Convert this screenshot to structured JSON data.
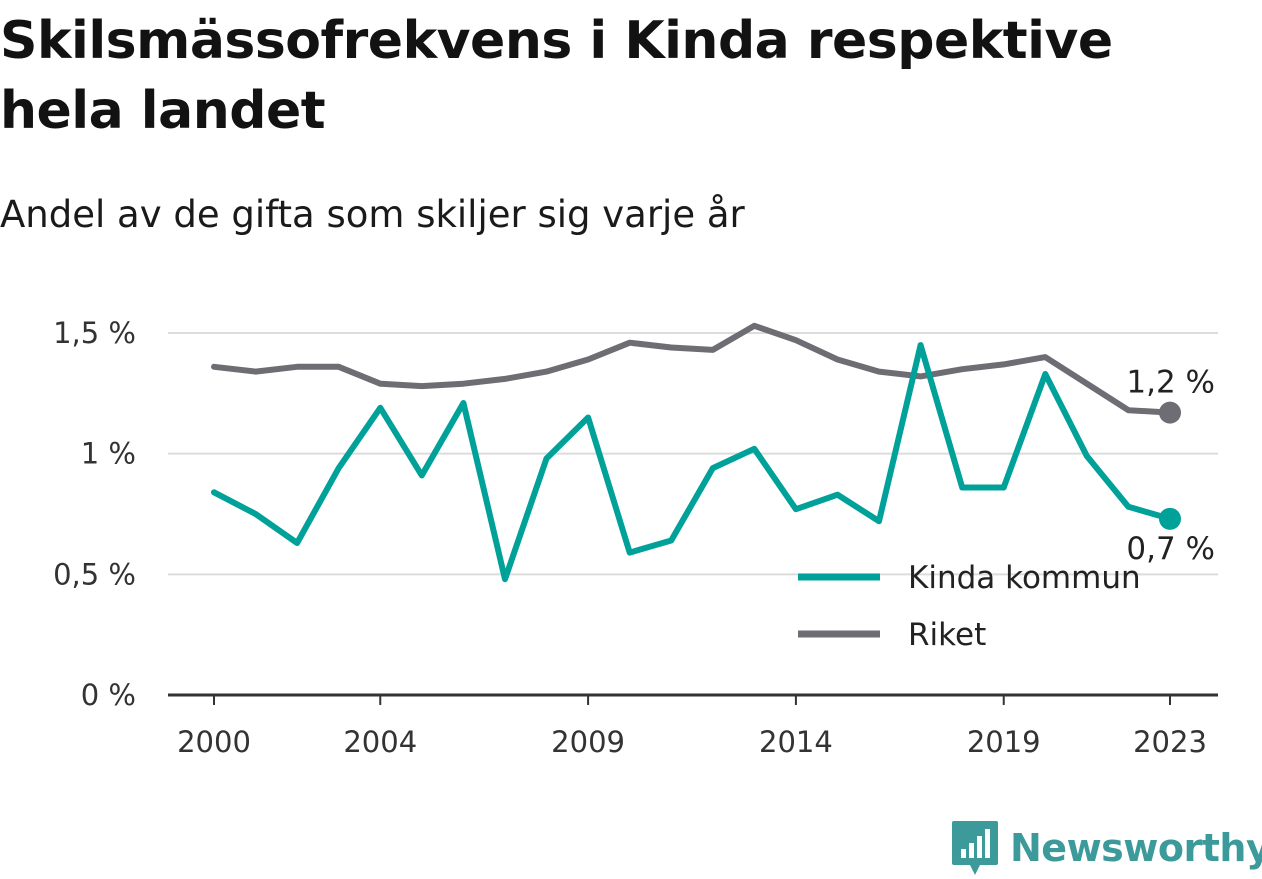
{
  "title": "Skilsmässofrekvens i Kinda respektive hela landet",
  "subtitle": "Andel av de gifta som skiljer sig varje år",
  "brand": {
    "name": "Newsworthy",
    "color": "#3d9a9b",
    "icon": "newsworthy-logo-icon"
  },
  "chart_data": {
    "type": "line",
    "title": "Skilsmässofrekvens i Kinda respektive hela landet",
    "subtitle": "Andel av de gifta som skiljer sig varje år",
    "xlabel": "",
    "ylabel": "",
    "x": [
      2000,
      2001,
      2002,
      2003,
      2004,
      2005,
      2006,
      2007,
      2008,
      2009,
      2010,
      2011,
      2012,
      2013,
      2014,
      2015,
      2016,
      2017,
      2018,
      2019,
      2020,
      2021,
      2022,
      2023
    ],
    "x_ticks": [
      "2000",
      "2004",
      "2009",
      "2014",
      "2019",
      "2023"
    ],
    "x_tick_values": [
      2000,
      2004,
      2009,
      2014,
      2019,
      2023
    ],
    "y_ticks": [
      "0 %",
      "0,5 %",
      "1 %",
      "1,5 %"
    ],
    "y_tick_values": [
      0,
      0.5,
      1,
      1.5
    ],
    "ylim": [
      0,
      1.5
    ],
    "grid": true,
    "legend_position": "bottom-right",
    "series": [
      {
        "name": "Kinda kommun",
        "color": "#00a199",
        "end_label": "0,7 %",
        "values": [
          0.84,
          0.75,
          0.63,
          0.94,
          1.19,
          0.91,
          1.21,
          0.48,
          0.98,
          1.15,
          0.59,
          0.64,
          0.94,
          1.02,
          0.77,
          0.83,
          0.72,
          1.45,
          0.86,
          0.86,
          1.33,
          0.99,
          0.78,
          0.73
        ]
      },
      {
        "name": "Riket",
        "color": "#6e6d73",
        "end_label": "1,2 %",
        "values": [
          1.36,
          1.34,
          1.36,
          1.36,
          1.29,
          1.28,
          1.29,
          1.31,
          1.34,
          1.39,
          1.46,
          1.44,
          1.43,
          1.53,
          1.47,
          1.39,
          1.34,
          1.32,
          1.35,
          1.37,
          1.4,
          1.29,
          1.18,
          1.17
        ]
      }
    ]
  }
}
